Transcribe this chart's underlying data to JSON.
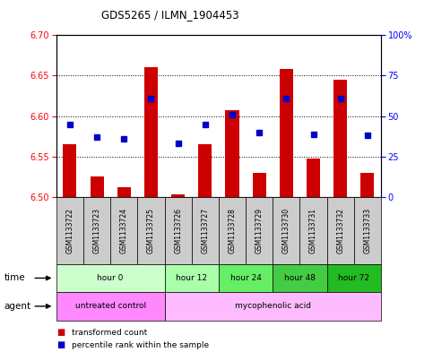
{
  "title": "GDS5265 / ILMN_1904453",
  "samples": [
    "GSM1133722",
    "GSM1133723",
    "GSM1133724",
    "GSM1133725",
    "GSM1133726",
    "GSM1133727",
    "GSM1133728",
    "GSM1133729",
    "GSM1133730",
    "GSM1133731",
    "GSM1133732",
    "GSM1133733"
  ],
  "bar_values": [
    6.565,
    6.525,
    6.512,
    6.66,
    6.503,
    6.565,
    6.607,
    6.53,
    6.658,
    6.548,
    6.645,
    6.53
  ],
  "blue_values": [
    45,
    37,
    36,
    61,
    33,
    45,
    51,
    40,
    61,
    39,
    61,
    38
  ],
  "bar_base": 6.5,
  "ylim_left": [
    6.5,
    6.7
  ],
  "ylim_right": [
    0,
    100
  ],
  "yticks_left": [
    6.5,
    6.55,
    6.6,
    6.65,
    6.7
  ],
  "yticks_right": [
    0,
    25,
    50,
    75,
    100
  ],
  "bar_color": "#cc0000",
  "blue_color": "#0000cc",
  "time_groups": [
    {
      "label": "hour 0",
      "start": 0,
      "end": 4,
      "color": "#ccffcc"
    },
    {
      "label": "hour 12",
      "start": 4,
      "end": 6,
      "color": "#aaffaa"
    },
    {
      "label": "hour 24",
      "start": 6,
      "end": 8,
      "color": "#66ee66"
    },
    {
      "label": "hour 48",
      "start": 8,
      "end": 10,
      "color": "#44cc44"
    },
    {
      "label": "hour 72",
      "start": 10,
      "end": 12,
      "color": "#22bb22"
    }
  ],
  "agent_groups": [
    {
      "label": "untreated control",
      "start": 0,
      "end": 4,
      "color": "#ff88ff"
    },
    {
      "label": "mycophenolic acid",
      "start": 4,
      "end": 12,
      "color": "#ffbbff"
    }
  ],
  "legend_bar_label": "transformed count",
  "legend_blue_label": "percentile rank within the sample",
  "sample_bg_color": "#cccccc",
  "plot_bg_color": "#ffffff"
}
